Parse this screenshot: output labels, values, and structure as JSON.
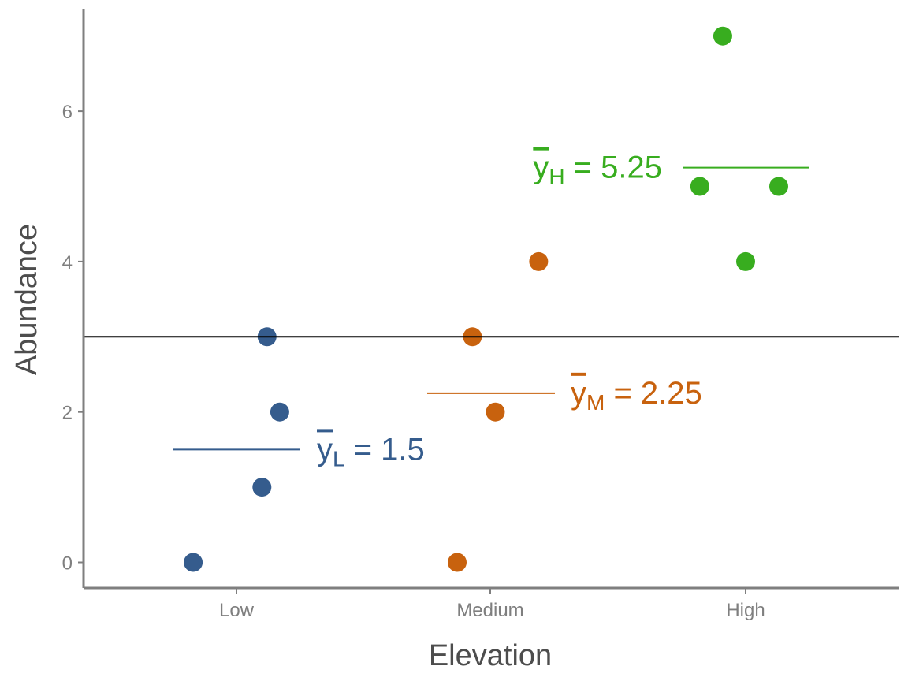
{
  "chart_data": {
    "type": "scatter",
    "xlabel": "Elevation",
    "ylabel": "Abundance",
    "categories": [
      "Low",
      "Medium",
      "High"
    ],
    "ylim": [
      -0.3,
      7.3
    ],
    "yticks": [
      0,
      2,
      4,
      6
    ],
    "grid": false,
    "overall_mean": 3,
    "series": [
      {
        "category": "Low",
        "color": "#355C8D",
        "points": [
          {
            "x": -0.17,
            "y": 0
          },
          {
            "x": 0.1,
            "y": 1
          },
          {
            "x": 0.12,
            "y": 3
          },
          {
            "x": 0.17,
            "y": 2
          }
        ],
        "mean": {
          "value": 1.5,
          "symbol": "y",
          "subscript": "L",
          "equals": "=",
          "text": "1.5"
        }
      },
      {
        "category": "Medium",
        "color": "#C8620E",
        "points": [
          {
            "x": -0.13,
            "y": 0
          },
          {
            "x": -0.07,
            "y": 3
          },
          {
            "x": 0.02,
            "y": 2
          },
          {
            "x": 0.19,
            "y": 4
          }
        ],
        "mean": {
          "value": 2.25,
          "symbol": "y",
          "subscript": "M",
          "equals": "=",
          "text": "2.25"
        }
      },
      {
        "category": "High",
        "color": "#38AD1F",
        "points": [
          {
            "x": -0.18,
            "y": 5
          },
          {
            "x": -0.09,
            "y": 7
          },
          {
            "x": 0.0,
            "y": 4
          },
          {
            "x": 0.13,
            "y": 5
          }
        ],
        "mean": {
          "value": 5.25,
          "symbol": "y",
          "subscript": "H",
          "equals": "=",
          "text": "5.25"
        }
      }
    ]
  }
}
